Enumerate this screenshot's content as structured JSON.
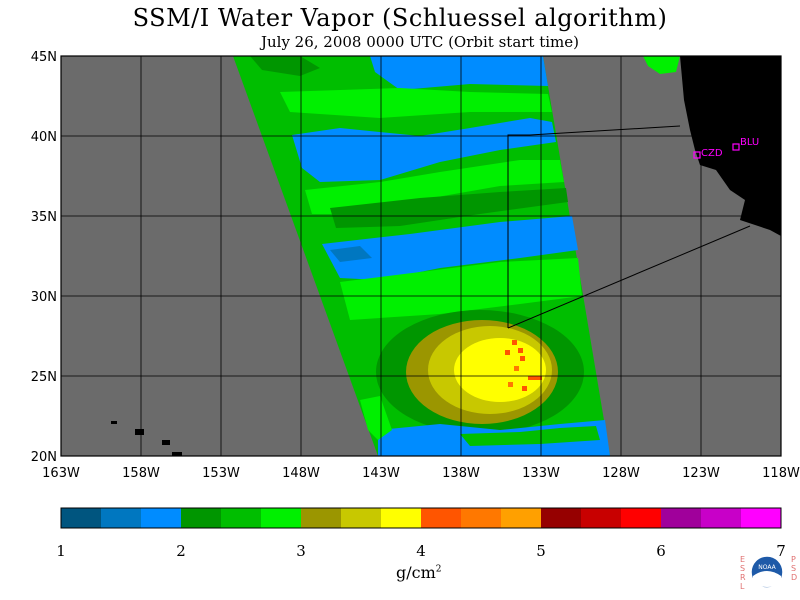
{
  "header": {
    "title": "SSM/I Water Vapor (Schluessel algorithm)",
    "subtitle": "July 26, 2008  0000 UTC  (Orbit start time)"
  },
  "map": {
    "lon_labels": [
      "163W",
      "158W",
      "153W",
      "148W",
      "143W",
      "138W",
      "133W",
      "128W",
      "123W",
      "118W"
    ],
    "lat_labels": [
      "45N",
      "40N",
      "35N",
      "30N",
      "25N",
      "20N"
    ],
    "stations": [
      {
        "code": "CZD"
      },
      {
        "code": "BLU"
      }
    ],
    "colors": {
      "land": "#000000",
      "missing": "#6b6b6b",
      "station": "#ff00ff"
    }
  },
  "legend": {
    "ticks": [
      "1",
      "2",
      "3",
      "4",
      "5",
      "6",
      "7"
    ],
    "unit": "g/cm",
    "unit_sup": "2",
    "colors": [
      "#00557f",
      "#0077c0",
      "#008cff",
      "#009600",
      "#00be00",
      "#00f000",
      "#9b9600",
      "#c8c800",
      "#ffff00",
      "#ff5500",
      "#ff7800",
      "#ffa000",
      "#960000",
      "#c80000",
      "#ff0000",
      "#a0009b",
      "#c800c8",
      "#ff00ff"
    ]
  },
  "logo": {
    "left_text": "ESRL",
    "right_text": "PSD",
    "badge_text": "NOAA"
  }
}
